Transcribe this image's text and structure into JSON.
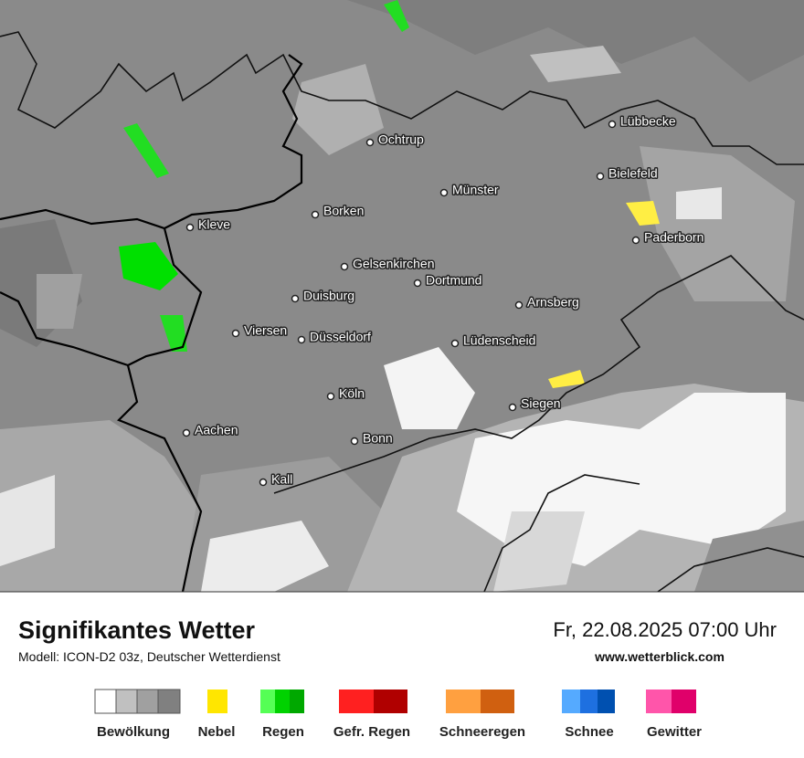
{
  "header": {
    "title": "Signifikantes Wetter",
    "subtitle": "Modell: ICON-D2 03z, Deutscher Wetterdienst",
    "datetime": "Fr, 22.08.2025 07:00 Uhr",
    "website": "www.wetterblick.com"
  },
  "cities": [
    "Lübbecke",
    "Ochtrup",
    "Bielefeld",
    "Münster",
    "Borken",
    "Kleve",
    "Paderborn",
    "Gelsenkirchen",
    "Dortmund",
    "Duisburg",
    "Arnsberg",
    "Viersen",
    "Düsseldorf",
    "Lüdenscheid",
    "Köln",
    "Siegen",
    "Aachen",
    "Bonn",
    "Kall"
  ],
  "legend": [
    "Bewölkung",
    "Nebel",
    "Regen",
    "Gefr. Regen",
    "Schneeregen",
    "Schnee",
    "Gewitter"
  ]
}
